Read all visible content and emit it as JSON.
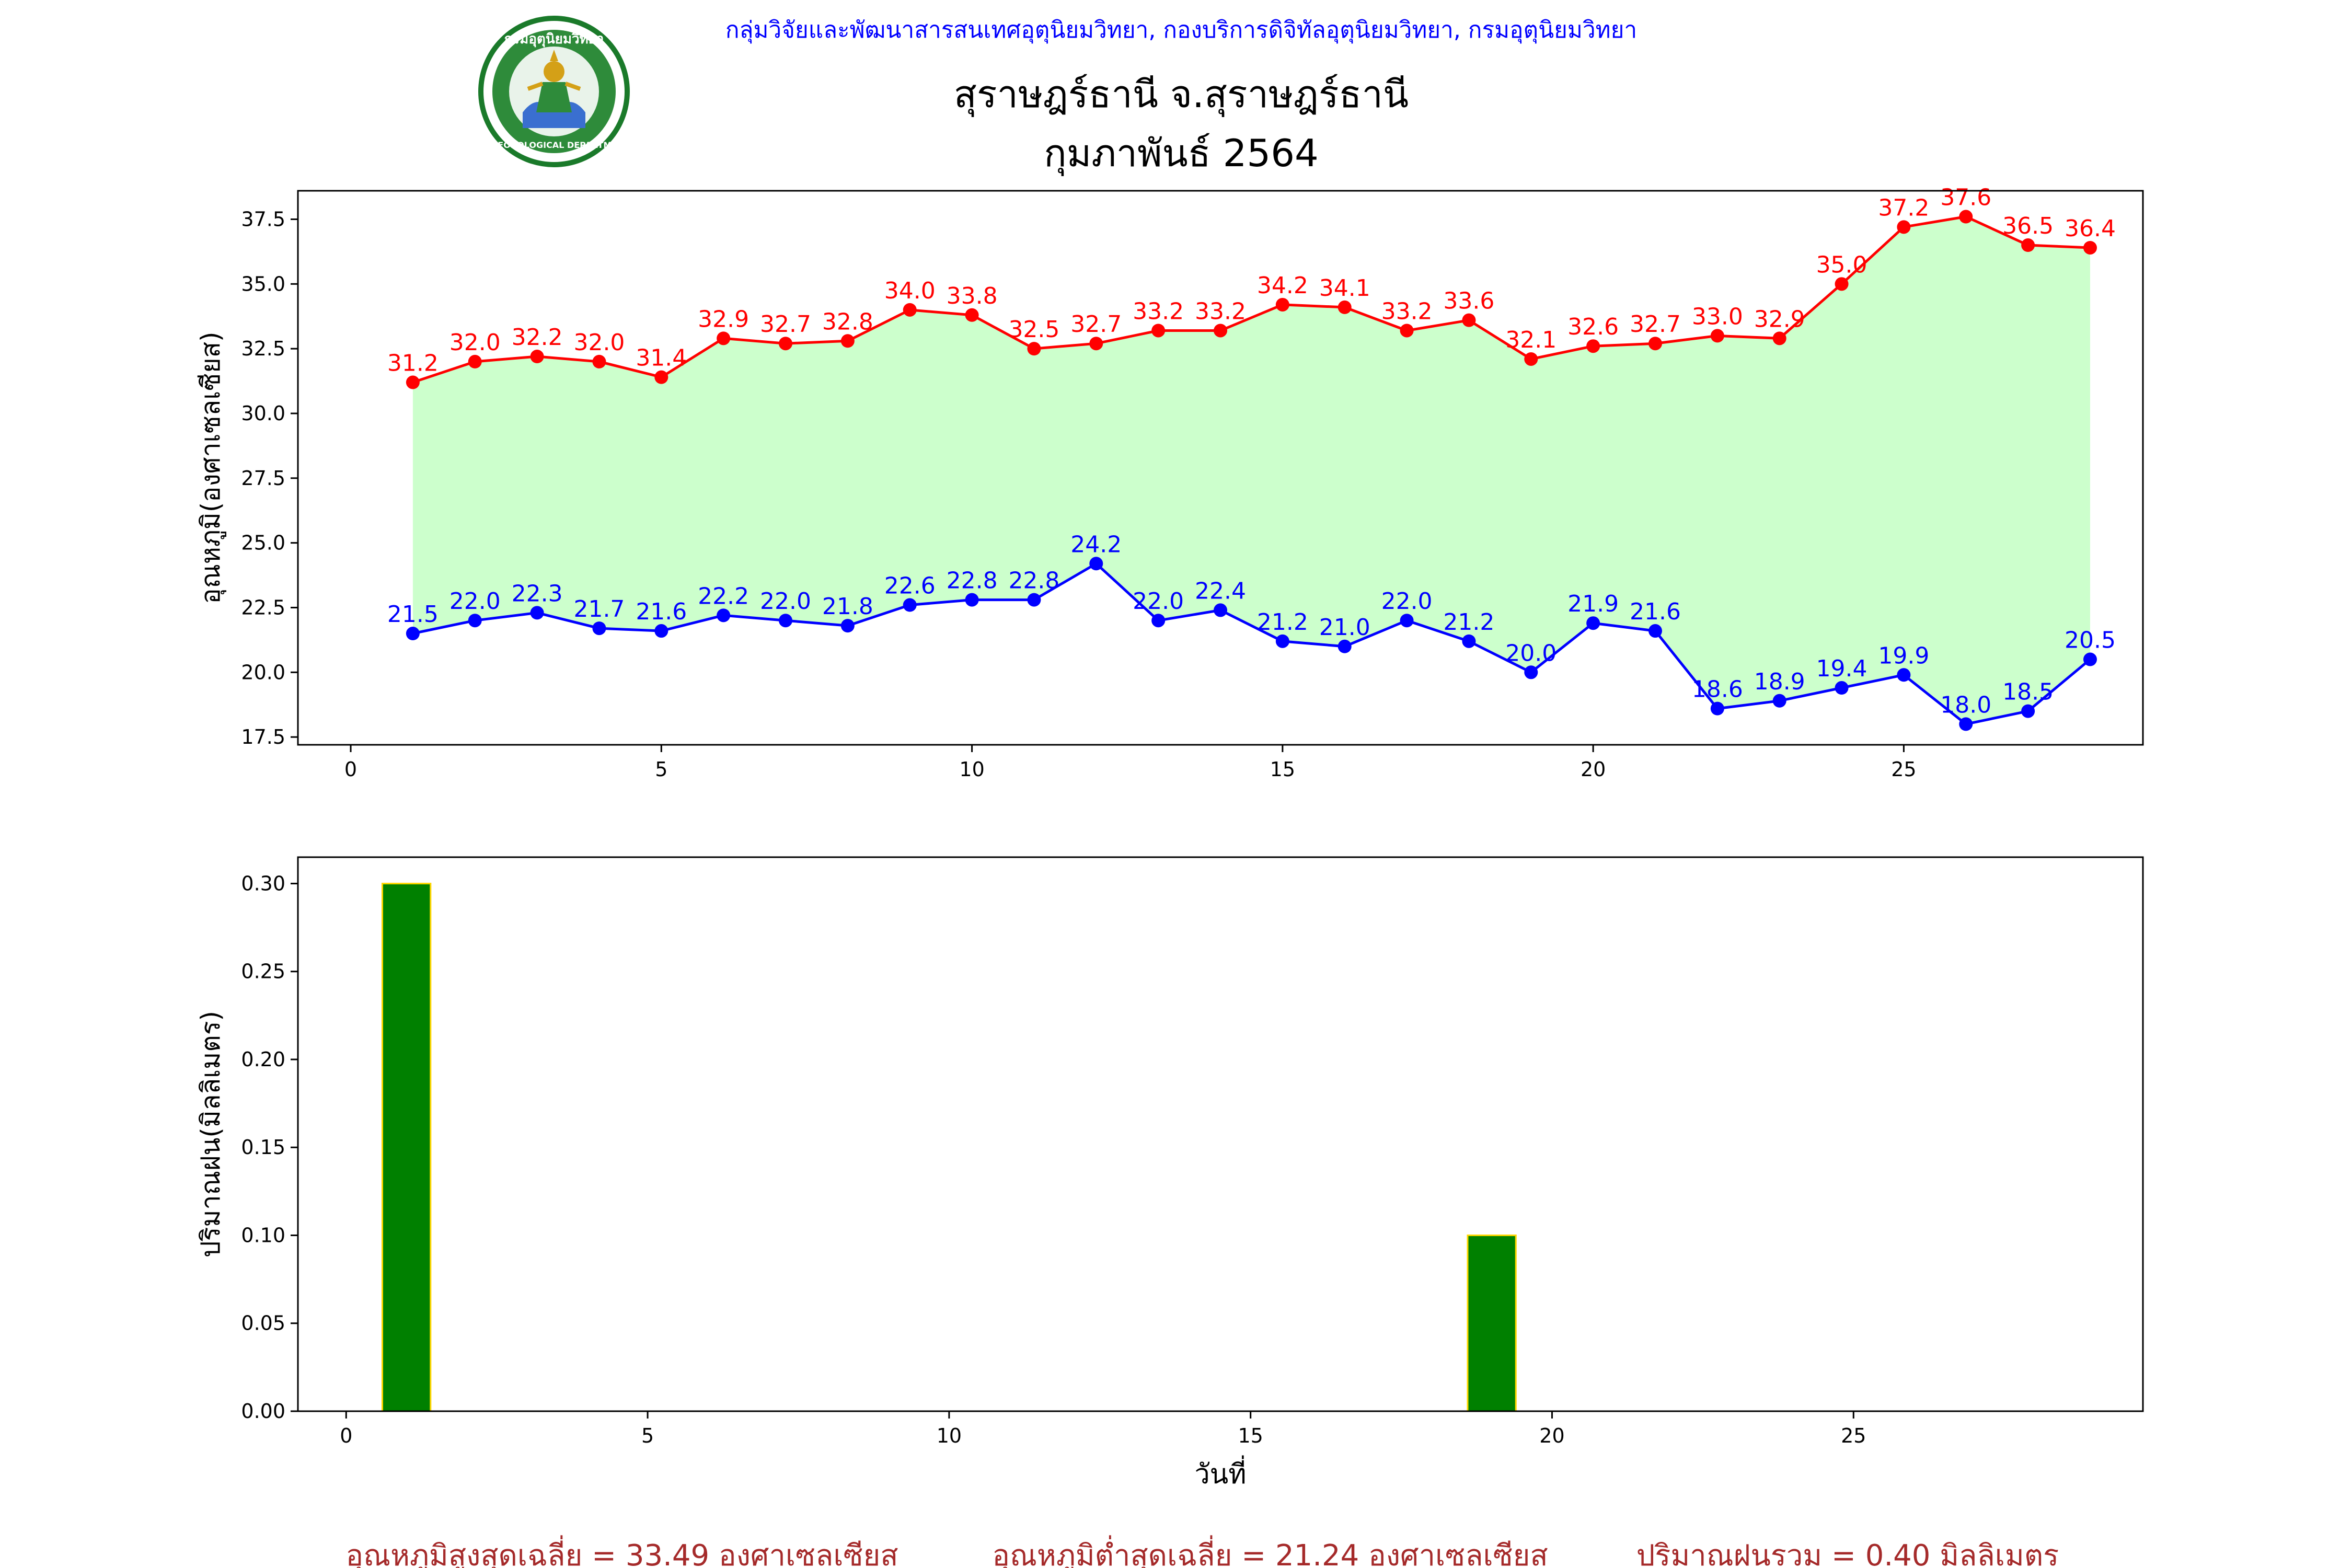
{
  "header": {
    "agency": "กลุ่มวิจัยและพัฒนาสารสนเทศอุตุนิยมวิทยา, กองบริการดิจิทัลอุตุนิยมวิทยา, กรมอุตุนิยมวิทยา",
    "station": "สุราษฎร์ธานี จ.สุราษฎร์ธานี",
    "period": "กุมภาพันธ์ 2564",
    "logo_text_top": "กรมอุตุนิยมวิทยา",
    "logo_text_bottom": "METEOROLOGICAL DEPARTMENT"
  },
  "colors": {
    "max": "#ff0000",
    "min": "#0000ff",
    "fill": "#ccffcc",
    "rain_bar": "#008000",
    "rain_edge": "#ffd700",
    "summary": "#a52a2a",
    "agency": "#0000ff"
  },
  "summary": {
    "avg_max": "อุณหภูมิสูงสุดเฉลี่ย = 33.49 องศาเซลเซียส",
    "avg_min": "อุณหภูมิต่ำสุดเฉลี่ย = 21.24 องศาเซลเซียส",
    "total_rain": "ปริมาณฝนรวม = 0.40 มิลลิเมตร"
  },
  "chart_data": [
    {
      "type": "line",
      "ylabel": "อุณหภูมิ(องศาเซลเซียส)",
      "xlim": [
        -0.85,
        28.85
      ],
      "ylim": [
        17.2,
        38.6
      ],
      "xticks": [
        0,
        5,
        10,
        15,
        20,
        25
      ],
      "yticks": [
        17.5,
        20.0,
        22.5,
        25.0,
        27.5,
        30.0,
        32.5,
        35.0,
        37.5
      ],
      "x": [
        1,
        2,
        3,
        4,
        5,
        6,
        7,
        8,
        9,
        10,
        11,
        12,
        13,
        14,
        15,
        16,
        17,
        18,
        19,
        20,
        21,
        22,
        23,
        24,
        25,
        26,
        27,
        28
      ],
      "series": [
        {
          "key": "max",
          "values": [
            31.2,
            32.0,
            32.2,
            32.0,
            31.4,
            32.9,
            32.7,
            32.8,
            34.0,
            33.8,
            32.5,
            32.7,
            33.2,
            33.2,
            34.2,
            34.1,
            33.2,
            33.6,
            32.1,
            32.6,
            32.7,
            33.0,
            32.9,
            35.0,
            37.2,
            37.6,
            36.5,
            36.4
          ]
        },
        {
          "key": "min",
          "values": [
            21.5,
            22.0,
            22.3,
            21.7,
            21.6,
            22.2,
            22.0,
            21.8,
            22.6,
            22.8,
            22.8,
            24.2,
            22.0,
            22.4,
            21.2,
            21.0,
            22.0,
            21.2,
            20.0,
            21.9,
            21.6,
            18.6,
            18.9,
            19.4,
            19.9,
            18.0,
            18.5,
            20.5
          ]
        }
      ]
    },
    {
      "type": "bar",
      "ylabel": "ปริมาณฝน(มิลลิเมตร)",
      "xlabel": "วันที่",
      "xlim": [
        -0.8,
        29.8
      ],
      "ylim": [
        0,
        0.315
      ],
      "xticks": [
        0,
        5,
        10,
        15,
        20,
        25
      ],
      "yticks": [
        0.0,
        0.05,
        0.1,
        0.15,
        0.2,
        0.25,
        0.3
      ],
      "x": [
        1,
        2,
        3,
        4,
        5,
        6,
        7,
        8,
        9,
        10,
        11,
        12,
        13,
        14,
        15,
        16,
        17,
        18,
        19,
        20,
        21,
        22,
        23,
        24,
        25,
        26,
        27,
        28
      ],
      "values": [
        0.3,
        0,
        0,
        0,
        0,
        0,
        0,
        0,
        0,
        0,
        0,
        0,
        0,
        0,
        0,
        0,
        0,
        0,
        0.1,
        0,
        0,
        0,
        0,
        0,
        0,
        0,
        0,
        0
      ]
    }
  ]
}
